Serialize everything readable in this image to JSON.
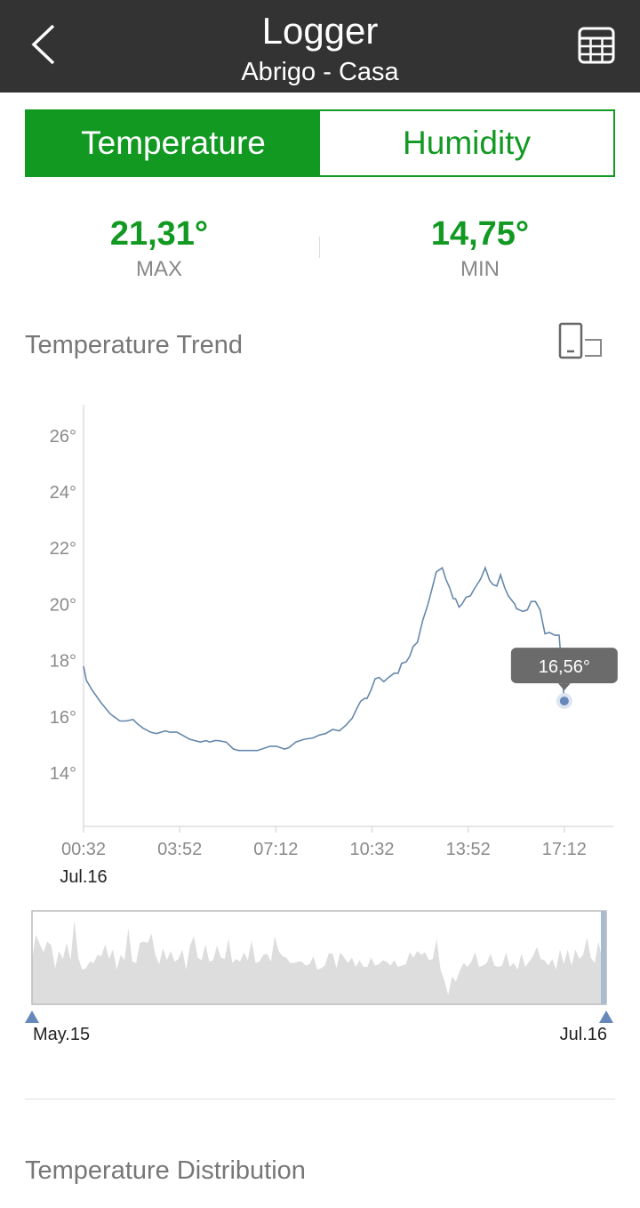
{
  "header": {
    "title": "Logger",
    "subtitle": "Abrigo - Casa",
    "bg_color": "#333333",
    "back_icon": "chevron-left-icon",
    "table_icon": "table-grid-icon"
  },
  "tabs": [
    {
      "label": "Temperature",
      "active": true
    },
    {
      "label": "Humidity",
      "active": false
    }
  ],
  "accent_color": "#119922",
  "stats": {
    "max": {
      "value": "21,31°",
      "label": "MAX"
    },
    "min": {
      "value": "14,75°",
      "label": "MIN"
    }
  },
  "trend": {
    "title": "Temperature Trend",
    "rotate_icon": "rotate-screen-icon"
  },
  "chart_data": {
    "type": "line",
    "line_color": "#6688aa",
    "y_ticks": [
      "26°",
      "24°",
      "22°",
      "20°",
      "18°",
      "16°",
      "14°"
    ],
    "y_tick_values": [
      26,
      24,
      22,
      20,
      18,
      16,
      14
    ],
    "ylim": [
      12.1,
      27.1
    ],
    "x_ticks": [
      "00:32",
      "03:52",
      "07:12",
      "10:32",
      "13:52",
      "17:12"
    ],
    "x_tick_hours": [
      0.533,
      3.867,
      7.2,
      10.533,
      13.867,
      17.2
    ],
    "xlim": [
      0.533,
      18.9
    ],
    "date_label": "Jul.16",
    "tooltip": {
      "text": "16,56°",
      "x": 17.2,
      "y": 16.56
    },
    "series": [
      {
        "x": [
          0.533,
          0.63,
          0.83,
          1.14,
          1.46,
          1.79,
          2.0,
          2.25,
          2.4,
          2.59,
          2.86,
          3.06,
          3.37,
          3.52,
          3.77,
          3.95,
          4.21,
          4.58,
          4.79,
          4.9,
          5.09,
          5.2,
          5.48,
          5.73,
          5.92,
          6.25,
          6.56,
          7.0,
          7.22,
          7.5,
          7.65,
          7.89,
          8.19,
          8.5,
          8.71,
          8.92,
          9.17,
          9.4,
          9.63,
          9.85,
          10.01,
          10.14,
          10.27,
          10.36,
          10.5,
          10.57,
          10.64,
          10.78,
          10.94,
          11.11,
          11.3,
          11.44,
          11.56,
          11.72,
          11.84,
          11.96,
          12.11,
          12.18,
          12.3,
          12.46,
          12.6,
          12.76,
          12.97,
          13.09,
          13.22,
          13.35,
          13.43,
          13.55,
          13.65,
          13.79,
          13.94,
          14.08,
          14.3,
          14.46,
          14.61,
          14.73,
          14.86,
          14.99,
          15.13,
          15.26,
          15.49,
          15.54,
          15.76,
          15.92,
          16.05,
          16.2,
          16.36,
          16.53,
          16.68,
          16.87,
          17.02,
          17.2
        ],
        "y": [
          17.8,
          17.3,
          16.95,
          16.5,
          16.1,
          15.85,
          15.85,
          15.9,
          15.75,
          15.6,
          15.45,
          15.4,
          15.5,
          15.45,
          15.45,
          15.35,
          15.2,
          15.1,
          15.15,
          15.1,
          15.15,
          15.15,
          15.1,
          14.85,
          14.8,
          14.8,
          14.8,
          14.95,
          14.95,
          14.85,
          14.9,
          15.1,
          15.2,
          15.25,
          15.35,
          15.4,
          15.55,
          15.5,
          15.7,
          15.95,
          16.3,
          16.55,
          16.65,
          16.65,
          16.95,
          17.15,
          17.35,
          17.4,
          17.25,
          17.4,
          17.55,
          17.55,
          17.9,
          17.95,
          18.15,
          18.5,
          18.65,
          18.95,
          19.45,
          19.95,
          20.5,
          21.15,
          21.3,
          20.9,
          20.6,
          20.2,
          20.2,
          19.9,
          20.0,
          20.25,
          20.3,
          20.55,
          20.9,
          21.3,
          20.85,
          20.7,
          20.65,
          21.05,
          20.6,
          20.3,
          20.0,
          19.85,
          19.75,
          19.8,
          20.1,
          20.1,
          19.8,
          18.95,
          19.0,
          18.9,
          18.9,
          16.56
        ]
      }
    ]
  },
  "range": {
    "start_label": "May.15",
    "end_label": "Jul.16",
    "fill_color": "#dddddd",
    "handle_color": "#6688bb",
    "profile": [
      15.8,
      17.7,
      17.0,
      16.4,
      17.2,
      16.9,
      15.2,
      16.5,
      15.9,
      17.1,
      15.8,
      18.8,
      16.0,
      15.1,
      15.2,
      15.7,
      15.6,
      16.2,
      16.1,
      17.0,
      15.9,
      16.6,
      15.1,
      16.2,
      15.8,
      18.2,
      15.7,
      15.6,
      17.1,
      17.2,
      17.1,
      17.8,
      16.2,
      15.5,
      16.7,
      15.8,
      16.5,
      15.7,
      15.9,
      16.6,
      15.1,
      16.9,
      17.6,
      16.0,
      15.8,
      17.0,
      15.7,
      15.8,
      16.9,
      16.0,
      15.9,
      17.4,
      15.6,
      15.9,
      15.7,
      16.4,
      15.8,
      17.3,
      15.6,
      15.7,
      16.2,
      16.3,
      15.7,
      17.6,
      16.5,
      16.1,
      16.0,
      15.6,
      15.6,
      15.7,
      15.7,
      15.4,
      15.5,
      16.1,
      15.1,
      15.2,
      15.4,
      16.3,
      16.3,
      15.2,
      16.4,
      16.0,
      15.6,
      16.0,
      15.3,
      15.8,
      15.3,
      15.3,
      16.0,
      15.4,
      15.5,
      15.8,
      15.7,
      15.4,
      15.8,
      15.3,
      15.4,
      15.5,
      16.4,
      16.0,
      16.5,
      16.2,
      16.4,
      15.8,
      15.9,
      17.4,
      15.1,
      14.3,
      13.2,
      14.6,
      14.2,
      15.0,
      15.6,
      15.3,
      15.7,
      16.4,
      15.3,
      15.4,
      15.6,
      16.3,
      15.4,
      15.3,
      15.4,
      16.4,
      15.3,
      15.6,
      15.1,
      16.3,
      15.3,
      15.7,
      16.1,
      16.8,
      15.9,
      15.8,
      15.4,
      15.9,
      15.1,
      16.6,
      15.5,
      16.6,
      15.4,
      16.6,
      15.9,
      16.2,
      17.5,
      16.0,
      15.6,
      17.2,
      15.8,
      15.8
    ]
  },
  "distribution": {
    "title": "Temperature Distribution"
  }
}
